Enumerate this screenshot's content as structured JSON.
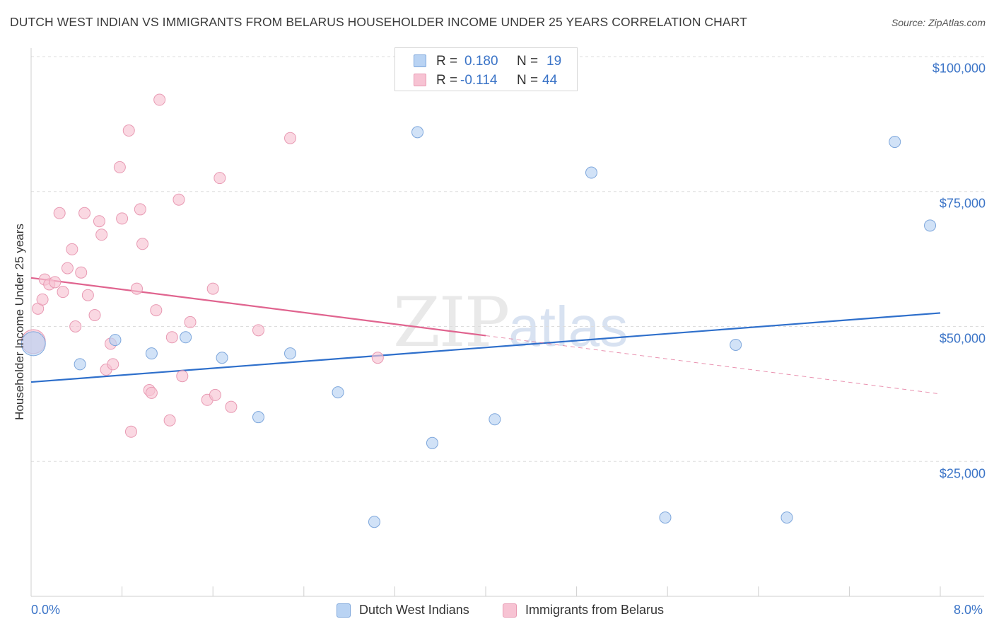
{
  "header": {
    "title": "DUTCH WEST INDIAN VS IMMIGRANTS FROM BELARUS HOUSEHOLDER INCOME UNDER 25 YEARS CORRELATION CHART",
    "source": "Source: ZipAtlas.com"
  },
  "watermark": {
    "zip": "ZIP",
    "atlas": "atlas"
  },
  "legend": {
    "series1": {
      "r_label": "R =",
      "r_value": "0.180",
      "n_label": "N =",
      "n_value": "19"
    },
    "series2": {
      "r_label": "R =",
      "r_value": "-0.114",
      "n_label": "N =",
      "n_value": "44"
    }
  },
  "colors": {
    "blue_fill": "#b9d3f3",
    "blue_stroke": "#7ea7dc",
    "blue_line": "#2e6fcb",
    "pink_fill": "#f7c3d3",
    "pink_stroke": "#e89ab3",
    "pink_line": "#e0648f",
    "axis_text": "#3b74c7",
    "grid": "#dddddd"
  },
  "chart_data": {
    "type": "scatter",
    "title": "DUTCH WEST INDIAN VS IMMIGRANTS FROM BELARUS HOUSEHOLDER INCOME UNDER 25 YEARS CORRELATION CHART",
    "xlabel": "",
    "ylabel": "Householder Income Under 25 years",
    "xlim": [
      0,
      8
    ],
    "ylim": [
      0,
      105000
    ],
    "x_tick_labels": [
      "0.0%",
      "8.0%"
    ],
    "y_ticks": [
      {
        "value": 25000,
        "label": "$25,000"
      },
      {
        "value": 50000,
        "label": "$50,000"
      },
      {
        "value": 75000,
        "label": "$75,000"
      },
      {
        "value": 100000,
        "label": "$100,000"
      }
    ],
    "series": [
      {
        "name": "Dutch West Indians",
        "color": "blue",
        "points": [
          [
            0.02,
            46800
          ],
          [
            0.43,
            43000
          ],
          [
            0.74,
            47500
          ],
          [
            1.06,
            45000
          ],
          [
            1.36,
            48000
          ],
          [
            1.68,
            44200
          ],
          [
            2.0,
            33200
          ],
          [
            2.28,
            45000
          ],
          [
            2.7,
            37800
          ],
          [
            3.02,
            13800
          ],
          [
            3.4,
            86000
          ],
          [
            3.53,
            28400
          ],
          [
            4.08,
            32800
          ],
          [
            4.93,
            78500
          ],
          [
            5.58,
            14600
          ],
          [
            6.2,
            46600
          ],
          [
            6.65,
            14600
          ],
          [
            7.6,
            84200
          ],
          [
            7.91,
            68700
          ]
        ],
        "large_point_index": 0,
        "trend": {
          "x0": 0,
          "y0": 39700,
          "x1": 8,
          "y1": 52500
        }
      },
      {
        "name": "Immigrants from Belarus",
        "color": "pink",
        "points": [
          [
            0.02,
            47200
          ],
          [
            0.06,
            53300
          ],
          [
            0.1,
            55000
          ],
          [
            0.12,
            58700
          ],
          [
            0.16,
            57800
          ],
          [
            0.21,
            58200
          ],
          [
            0.25,
            71000
          ],
          [
            0.28,
            56400
          ],
          [
            0.32,
            60800
          ],
          [
            0.36,
            64300
          ],
          [
            0.39,
            50000
          ],
          [
            0.44,
            60000
          ],
          [
            0.47,
            71000
          ],
          [
            0.5,
            55800
          ],
          [
            0.56,
            52100
          ],
          [
            0.6,
            69500
          ],
          [
            0.62,
            67000
          ],
          [
            0.66,
            42000
          ],
          [
            0.7,
            46800
          ],
          [
            0.72,
            43000
          ],
          [
            0.78,
            79500
          ],
          [
            0.8,
            70000
          ],
          [
            0.86,
            86300
          ],
          [
            0.88,
            30500
          ],
          [
            0.93,
            57000
          ],
          [
            0.96,
            71700
          ],
          [
            0.98,
            65300
          ],
          [
            1.04,
            38200
          ],
          [
            1.06,
            37700
          ],
          [
            1.1,
            53000
          ],
          [
            1.13,
            92000
          ],
          [
            1.22,
            32600
          ],
          [
            1.24,
            48000
          ],
          [
            1.3,
            73500
          ],
          [
            1.33,
            40800
          ],
          [
            1.4,
            50800
          ],
          [
            1.55,
            36400
          ],
          [
            1.6,
            57000
          ],
          [
            1.62,
            37300
          ],
          [
            1.66,
            77500
          ],
          [
            1.76,
            35100
          ],
          [
            2.0,
            49300
          ],
          [
            2.28,
            84900
          ],
          [
            3.05,
            44200
          ]
        ],
        "large_point_index": 0,
        "trend": {
          "x0": 0,
          "y0": 59000,
          "x1": 4.0,
          "y1": 48300,
          "dash_x1": 8,
          "dash_y1": 37500
        }
      }
    ]
  },
  "bottom_legend": {
    "item1": "Dutch West Indians",
    "item2": "Immigrants from Belarus"
  }
}
